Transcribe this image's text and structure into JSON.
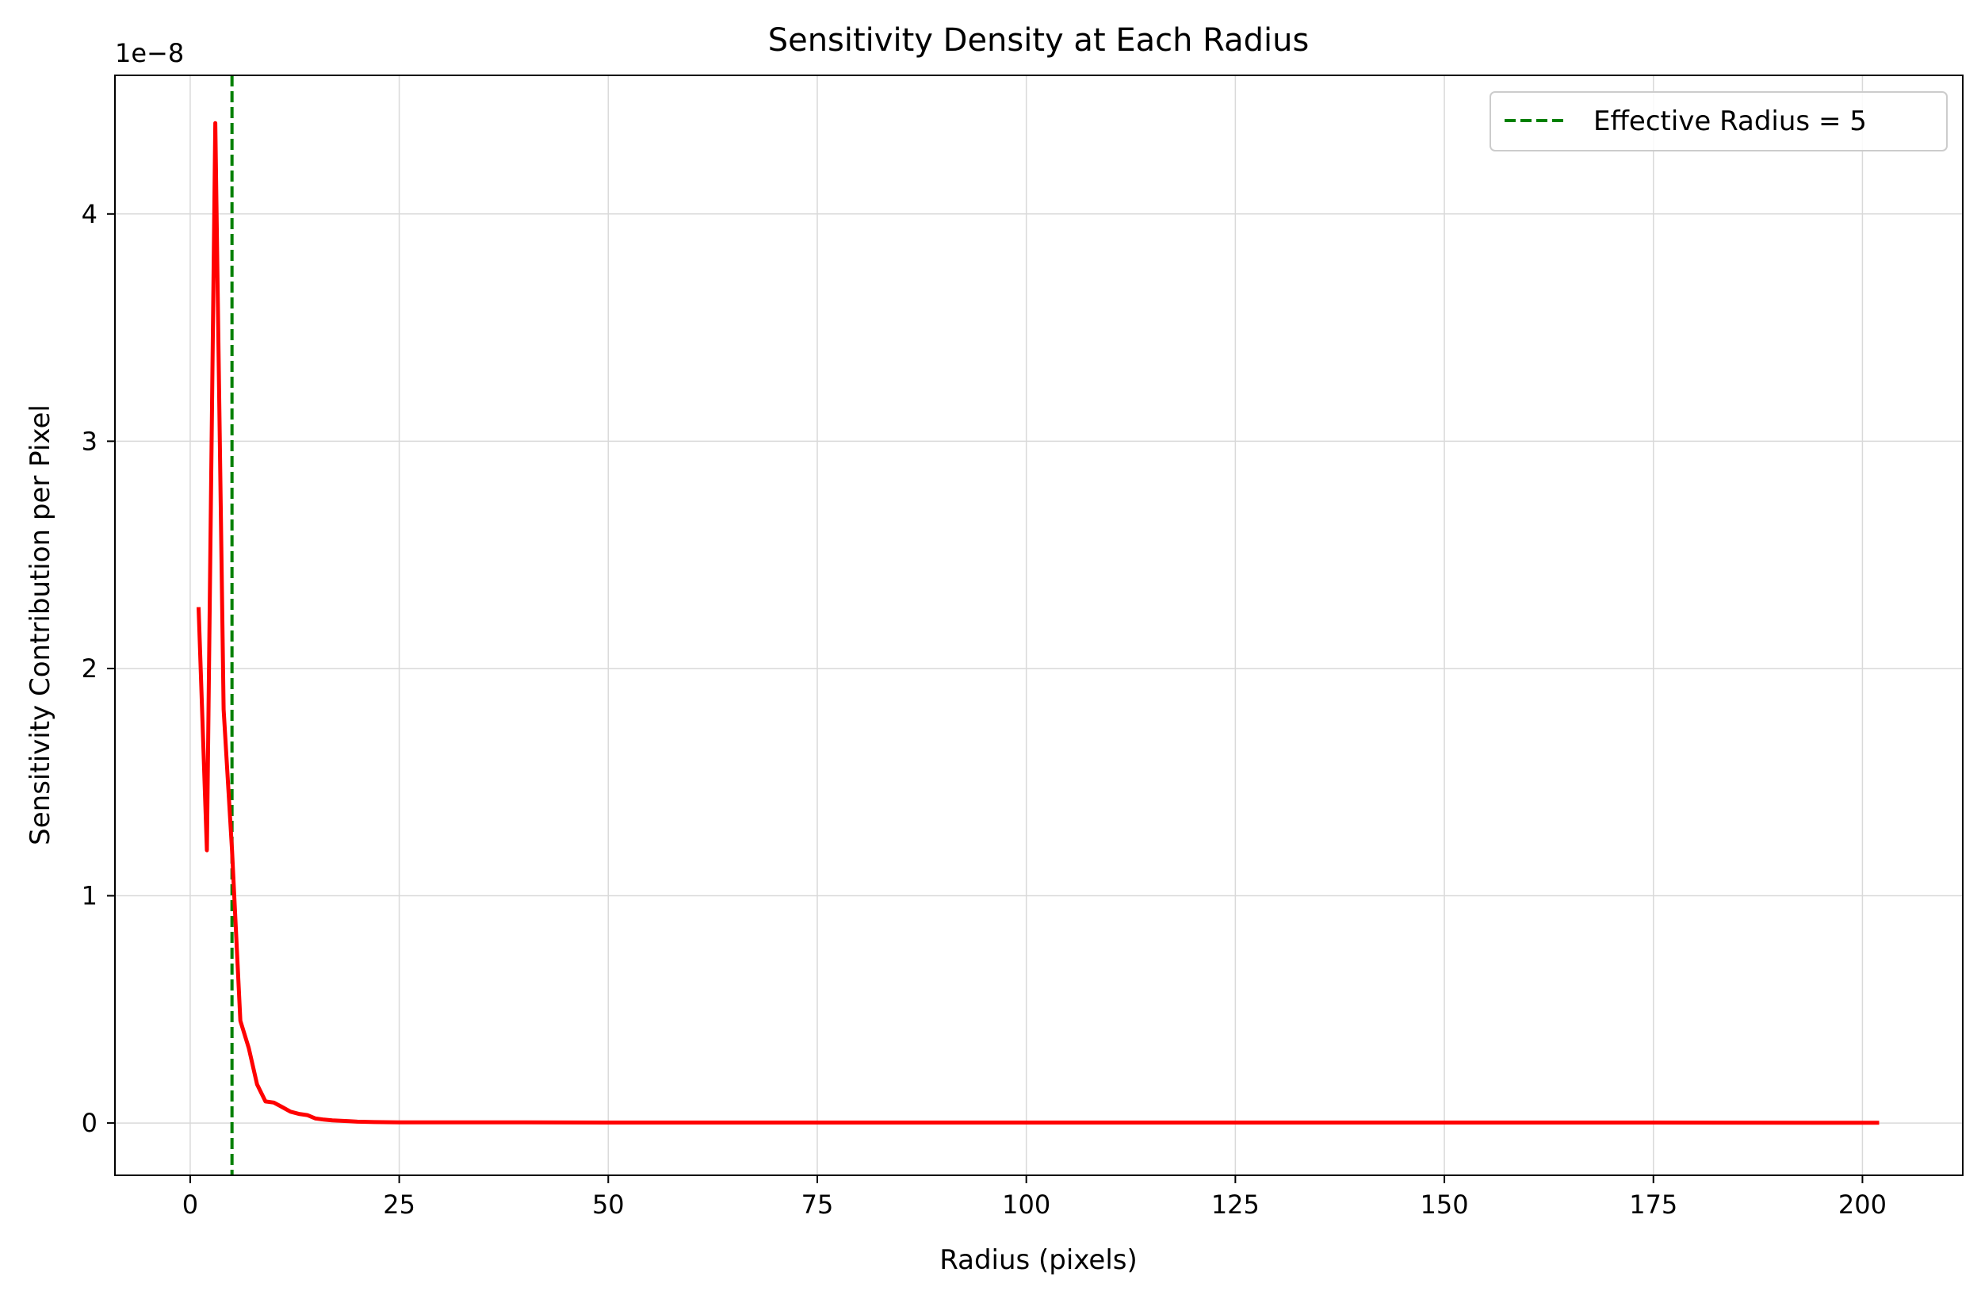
{
  "chart_data": {
    "type": "line",
    "title": "Sensitivity Density at Each Radius",
    "xlabel": "Radius (pixels)",
    "ylabel": "Sensitivity Contribution per Pixel",
    "y_offset_label": "1e−8",
    "xlim": [
      -9,
      212
    ],
    "ylim": [
      -0.23,
      4.61
    ],
    "x_ticks": [
      0,
      25,
      50,
      75,
      100,
      125,
      150,
      175,
      200
    ],
    "y_ticks": [
      0,
      1,
      2,
      3,
      4
    ],
    "grid": true,
    "legend_position": "top-right",
    "series": [
      {
        "values_scale": "1e-8",
        "color": "#ff0000",
        "x": [
          1,
          2,
          3,
          4,
          5,
          6,
          7,
          8,
          9,
          10,
          11,
          12,
          13,
          14,
          15,
          16,
          17,
          18,
          19,
          20,
          22,
          25,
          30,
          40,
          50,
          75,
          100,
          125,
          150,
          175,
          202
        ],
        "y": [
          2.27,
          1.2,
          4.4,
          1.82,
          1.2,
          0.45,
          0.33,
          0.17,
          0.095,
          0.09,
          0.07,
          0.05,
          0.04,
          0.035,
          0.02,
          0.015,
          0.012,
          0.01,
          0.008,
          0.006,
          0.004,
          0.003,
          0.003,
          0.003,
          0.002,
          0.002,
          0.002,
          0.002,
          0.002,
          0.002,
          0.001
        ]
      }
    ],
    "reference_lines": [
      {
        "name": "Effective Radius = 5",
        "orientation": "vertical",
        "x": 5,
        "color": "#008000",
        "style": "dashed"
      }
    ]
  }
}
